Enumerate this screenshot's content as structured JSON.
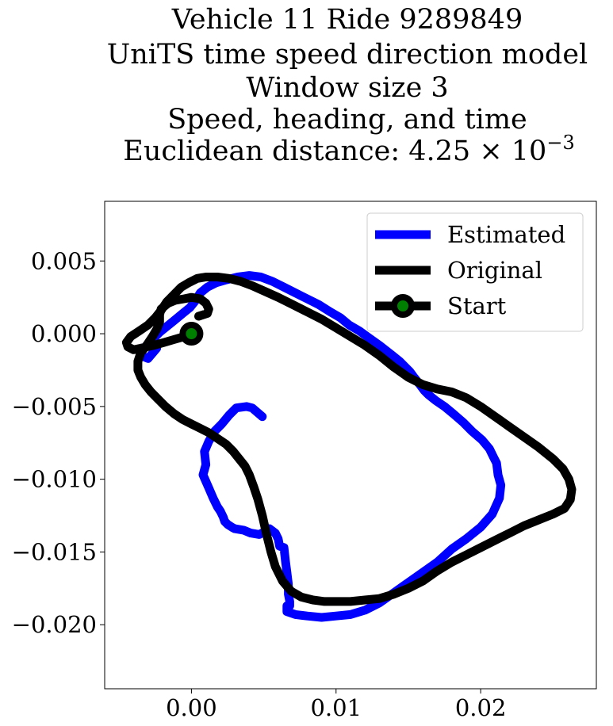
{
  "chart_data": {
    "type": "line",
    "title_lines": [
      "Vehicle 11 Ride 9289849",
      "UniTS time speed direction model",
      "Window size 3",
      "Speed, heading, and time"
    ],
    "title_metric_prefix": "Euclidean distance: ",
    "title_metric_mantissa": "4.25",
    "title_metric_times": "×",
    "title_metric_base": "10",
    "title_metric_exponent": "−3",
    "xlabel": "",
    "ylabel": "",
    "xlim": [
      -0.006,
      0.028
    ],
    "ylim": [
      -0.0244,
      0.0091
    ],
    "x_ticks": [
      0.0,
      0.01,
      0.02
    ],
    "x_tick_labels": [
      "0.00",
      "0.01",
      "0.02"
    ],
    "y_ticks": [
      0.005,
      0.0,
      -0.005,
      -0.01,
      -0.015,
      -0.02
    ],
    "y_tick_labels": [
      "0.005",
      "0.000",
      "−0.005",
      "−0.010",
      "−0.015",
      "−0.020"
    ],
    "grid": false,
    "legend_position": "upper right",
    "series": [
      {
        "name": "Estimated",
        "color": "#0000ff",
        "x": [
          0.0049,
          0.0042,
          0.0038,
          0.0031,
          0.0026,
          0.0021,
          0.0016,
          0.0012,
          0.0009,
          0.001,
          0.0008,
          0.0012,
          0.0015,
          0.0018,
          0.002,
          0.0022,
          0.0023,
          0.0025,
          0.0028,
          0.003,
          0.0036,
          0.0041,
          0.0047,
          0.0054,
          0.0058,
          0.006,
          0.0061,
          0.0064,
          0.0065,
          0.0066,
          0.0067,
          0.0067,
          0.0068,
          0.0068,
          0.0066,
          0.0066,
          0.0072,
          0.008,
          0.009,
          0.01,
          0.011,
          0.012,
          0.013,
          0.014,
          0.015,
          0.016,
          0.017,
          0.018,
          0.019,
          0.02,
          0.0208,
          0.0213,
          0.0214,
          0.0212,
          0.0211,
          0.0209,
          0.0206,
          0.0201,
          0.0194,
          0.0188,
          0.0181,
          0.0175,
          0.0169,
          0.0164,
          0.0161,
          0.0158,
          0.0154,
          0.0151,
          0.0148,
          0.0144,
          0.0139,
          0.013,
          0.0123,
          0.0116,
          0.0109,
          0.0103,
          0.0096,
          0.0088,
          0.008,
          0.0072,
          0.0064,
          0.0056,
          0.0048,
          0.004,
          0.0032,
          0.0024,
          0.0017,
          0.0011,
          0.0006,
          0.0003,
          -0.0001,
          -0.0006,
          -0.0012,
          -0.0017,
          -0.0022,
          -0.0026,
          -0.003,
          -0.0034,
          -0.0035,
          -0.003,
          -0.0024
        ],
        "y": [
          -0.0057,
          -0.0051,
          -0.005,
          -0.0051,
          -0.0056,
          -0.0062,
          -0.0067,
          -0.0074,
          -0.0081,
          -0.009,
          -0.0097,
          -0.0106,
          -0.0113,
          -0.0119,
          -0.0122,
          -0.0126,
          -0.0129,
          -0.0131,
          -0.0133,
          -0.0134,
          -0.0135,
          -0.0137,
          -0.0138,
          -0.0134,
          -0.0137,
          -0.0141,
          -0.0146,
          -0.0147,
          -0.0156,
          -0.0164,
          -0.0172,
          -0.0179,
          -0.0184,
          -0.0187,
          -0.0187,
          -0.0191,
          -0.0193,
          -0.0194,
          -0.0195,
          -0.0194,
          -0.0193,
          -0.019,
          -0.0185,
          -0.0178,
          -0.0171,
          -0.0164,
          -0.0157,
          -0.0148,
          -0.0141,
          -0.0133,
          -0.0124,
          -0.0113,
          -0.0104,
          -0.0097,
          -0.0089,
          -0.0085,
          -0.0079,
          -0.0073,
          -0.0067,
          -0.0061,
          -0.0055,
          -0.005,
          -0.0046,
          -0.0042,
          -0.0039,
          -0.0035,
          -0.003,
          -0.0026,
          -0.0023,
          -0.0019,
          -0.0015,
          -0.0008,
          -0.0003,
          0.0002,
          0.0006,
          0.0011,
          0.0015,
          0.002,
          0.0024,
          0.0028,
          0.0032,
          0.0036,
          0.0039,
          0.004,
          0.0039,
          0.0037,
          0.0035,
          0.0032,
          0.0028,
          0.0023,
          0.0018,
          0.0014,
          0.0009,
          0.0005,
          0.0001,
          -0.0003,
          -0.0007,
          -0.0011,
          -0.0015,
          -0.0017,
          -0.001
        ]
      },
      {
        "name": "Original",
        "color": "#000000",
        "x": [
          0.0,
          -0.0005,
          -0.0012,
          -0.0019,
          -0.0026,
          -0.0031,
          -0.0035,
          -0.004,
          -0.0044,
          -0.0045,
          -0.0042,
          -0.0036,
          -0.003,
          -0.0025,
          -0.0021,
          -0.0017,
          -0.0012,
          -0.0007,
          -0.0002,
          0.0004,
          0.001,
          0.0018,
          0.0026,
          0.0034,
          0.0042,
          0.0051,
          0.006,
          0.007,
          0.008,
          0.009,
          0.01,
          0.011,
          0.012,
          0.013,
          0.014,
          0.015,
          0.016,
          0.017,
          0.018,
          0.019,
          0.02,
          0.021,
          0.022,
          0.023,
          0.024,
          0.025,
          0.0257,
          0.0261,
          0.0263,
          0.0262,
          0.0258,
          0.025,
          0.024,
          0.023,
          0.022,
          0.021,
          0.02,
          0.019,
          0.018,
          0.017,
          0.016,
          0.015,
          0.014,
          0.013,
          0.012,
          0.011,
          0.01,
          0.0092,
          0.0084,
          0.0076,
          0.0069,
          0.0063,
          0.0058,
          0.0055,
          0.0052,
          0.0049,
          0.0046,
          0.0043,
          0.004,
          0.0037,
          0.0033,
          0.0029,
          0.0024,
          0.0018,
          0.0012,
          0.0006,
          0.0,
          -0.0006,
          -0.0012,
          -0.0018,
          -0.0023,
          -0.0028,
          -0.0032,
          -0.0035,
          -0.0037,
          -0.0037,
          -0.0035,
          -0.0031,
          -0.0027,
          -0.0024,
          -0.0022,
          -0.0022,
          -0.0021,
          -0.0016,
          -0.0011,
          -0.0005,
          0.0,
          0.0006,
          0.001,
          0.0012,
          0.0011,
          0.0005
        ],
        "y": [
          0.0,
          -0.0002,
          -0.0004,
          -0.0006,
          -0.0008,
          -0.0009,
          -0.001,
          -0.0011,
          -0.0009,
          -0.0006,
          -0.0002,
          0.0002,
          0.0006,
          0.0011,
          0.0016,
          0.0022,
          0.0027,
          0.0032,
          0.0035,
          0.0038,
          0.0039,
          0.0039,
          0.0038,
          0.0036,
          0.0033,
          0.0029,
          0.0025,
          0.002,
          0.0015,
          0.001,
          0.0004,
          -0.0002,
          -0.0008,
          -0.0015,
          -0.0023,
          -0.003,
          -0.0035,
          -0.0038,
          -0.004,
          -0.0044,
          -0.005,
          -0.0057,
          -0.0064,
          -0.0071,
          -0.0078,
          -0.0086,
          -0.0093,
          -0.01,
          -0.0107,
          -0.0114,
          -0.012,
          -0.0124,
          -0.0128,
          -0.0132,
          -0.0137,
          -0.0142,
          -0.0147,
          -0.0152,
          -0.0157,
          -0.0163,
          -0.017,
          -0.0175,
          -0.0179,
          -0.0182,
          -0.0183,
          -0.0184,
          -0.0184,
          -0.0184,
          -0.0183,
          -0.0181,
          -0.0177,
          -0.017,
          -0.016,
          -0.015,
          -0.0138,
          -0.0125,
          -0.0114,
          -0.0105,
          -0.0097,
          -0.0091,
          -0.0086,
          -0.0081,
          -0.0076,
          -0.0072,
          -0.0068,
          -0.0065,
          -0.0062,
          -0.0059,
          -0.0055,
          -0.005,
          -0.0045,
          -0.004,
          -0.0035,
          -0.003,
          -0.0025,
          -0.0019,
          -0.0013,
          -0.0008,
          -0.0002,
          0.0003,
          0.0008,
          0.0013,
          0.0017,
          0.0021,
          0.0023,
          0.0024,
          0.0025,
          0.0024,
          0.0021,
          0.0017,
          0.0014,
          0.0012
        ]
      }
    ],
    "start": {
      "name": "Start",
      "x": 0.0,
      "y": 0.0,
      "edge_color": "#000000",
      "face_color": "#008000"
    }
  }
}
